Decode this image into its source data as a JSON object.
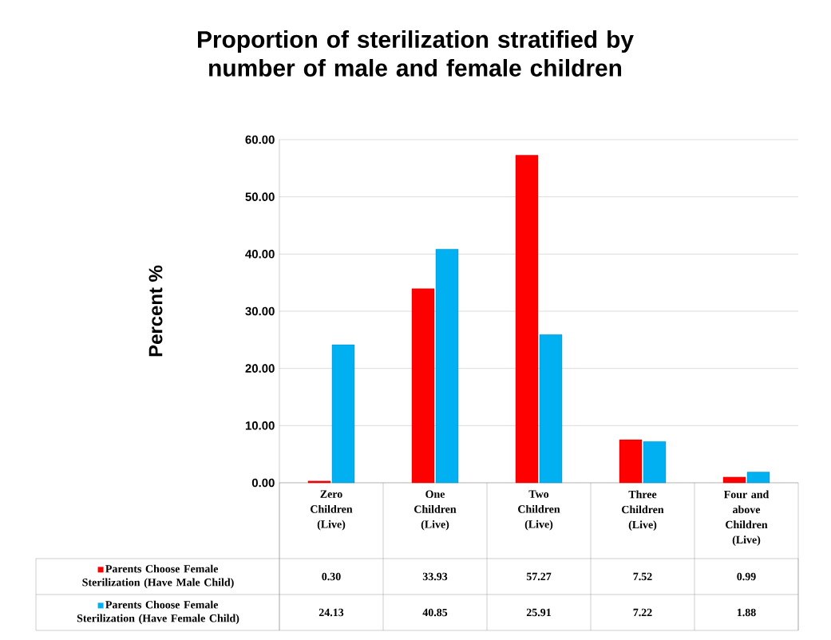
{
  "chart_data": {
    "type": "bar",
    "title": "Proportion of sterilization stratified by number of male and female children",
    "ylabel": "Percent %",
    "categories": [
      "Zero Children (Live)",
      "One Children (Live)",
      "Two Children (Live)",
      "Three Children (Live)",
      "Four and above Children (Live)"
    ],
    "series": [
      {
        "name": "Parents Choose Female Sterilization (Have Male Child)",
        "color": "#ff0000",
        "values": [
          0.3,
          33.93,
          57.27,
          7.52,
          0.99
        ],
        "value_labels": [
          "0.30",
          "33.93",
          "57.27",
          "7.52",
          "0.99"
        ]
      },
      {
        "name": "Parents Choose Female Sterilization (Have Female Child)",
        "color": "#00b0f0",
        "values": [
          24.13,
          40.85,
          25.91,
          7.22,
          1.88
        ],
        "value_labels": [
          "24.13",
          "40.85",
          "25.91",
          "7.22",
          "1.88"
        ]
      }
    ],
    "ylim": [
      0,
      60
    ],
    "yticks": [
      {
        "value": 0,
        "label": "0.00"
      },
      {
        "value": 10,
        "label": "10.00"
      },
      {
        "value": 20,
        "label": "20.00"
      },
      {
        "value": 30,
        "label": "30.00"
      },
      {
        "value": 40,
        "label": "40.00"
      },
      {
        "value": 50,
        "label": "50.00"
      },
      {
        "value": 60,
        "label": "60.00"
      }
    ],
    "grid": "y",
    "legend": "bottom"
  }
}
